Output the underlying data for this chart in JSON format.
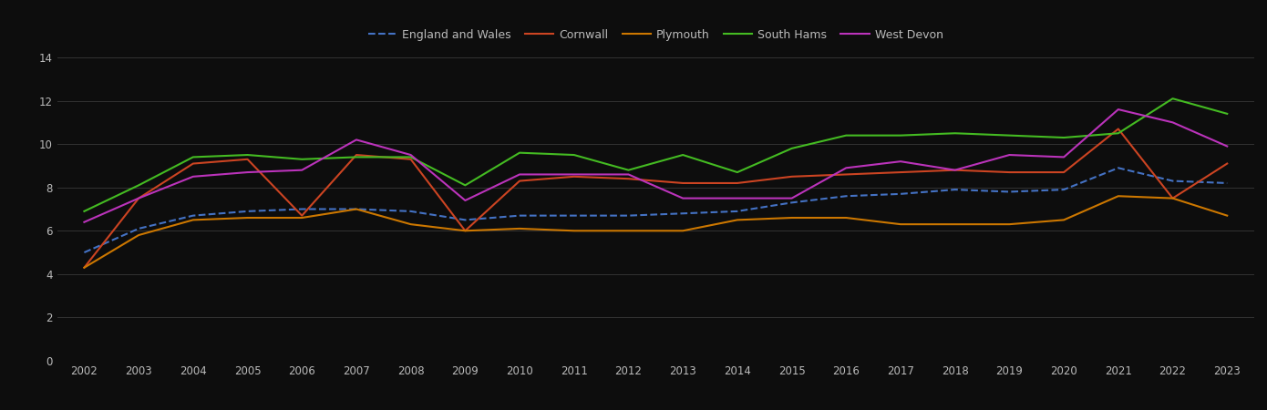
{
  "years": [
    2002,
    2003,
    2004,
    2005,
    2006,
    2007,
    2008,
    2009,
    2010,
    2011,
    2012,
    2013,
    2014,
    2015,
    2016,
    2017,
    2018,
    2019,
    2020,
    2021,
    2022,
    2023
  ],
  "england_and_wales": [
    5.0,
    6.1,
    6.7,
    6.9,
    7.0,
    7.0,
    6.9,
    6.5,
    6.7,
    6.7,
    6.7,
    6.8,
    6.9,
    7.3,
    7.6,
    7.7,
    7.9,
    7.8,
    7.9,
    8.9,
    8.3,
    8.2
  ],
  "cornwall": [
    4.3,
    7.5,
    9.1,
    9.3,
    6.7,
    9.5,
    9.3,
    6.0,
    8.3,
    8.5,
    8.4,
    8.2,
    8.2,
    8.5,
    8.6,
    8.7,
    8.8,
    8.7,
    8.7,
    10.7,
    7.5,
    9.1
  ],
  "plymouth": [
    4.3,
    5.8,
    6.5,
    6.6,
    6.6,
    7.0,
    6.3,
    6.0,
    6.1,
    6.0,
    6.0,
    6.0,
    6.5,
    6.6,
    6.6,
    6.3,
    6.3,
    6.3,
    6.5,
    7.6,
    7.5,
    6.7
  ],
  "south_hams": [
    6.9,
    8.1,
    9.4,
    9.5,
    9.3,
    9.4,
    9.4,
    8.1,
    9.6,
    9.5,
    8.8,
    9.5,
    8.7,
    9.8,
    10.4,
    10.4,
    10.5,
    10.4,
    10.3,
    10.5,
    12.1,
    11.4
  ],
  "west_devon": [
    6.4,
    7.5,
    8.5,
    8.7,
    8.8,
    10.2,
    9.5,
    7.4,
    8.6,
    8.6,
    8.6,
    7.5,
    7.5,
    7.5,
    8.9,
    9.2,
    8.8,
    9.5,
    9.4,
    11.6,
    11.0,
    9.9
  ],
  "colors": {
    "england_and_wales": "#4472c4",
    "cornwall": "#cc4422",
    "plymouth": "#cc7700",
    "south_hams": "#44bb22",
    "west_devon": "#bb33bb"
  },
  "background_color": "#0d0d0d",
  "grid_color": "#333333",
  "text_color": "#bbbbbb",
  "ylim": [
    0,
    14
  ],
  "yticks": [
    0,
    2,
    4,
    6,
    8,
    10,
    12,
    14
  ]
}
